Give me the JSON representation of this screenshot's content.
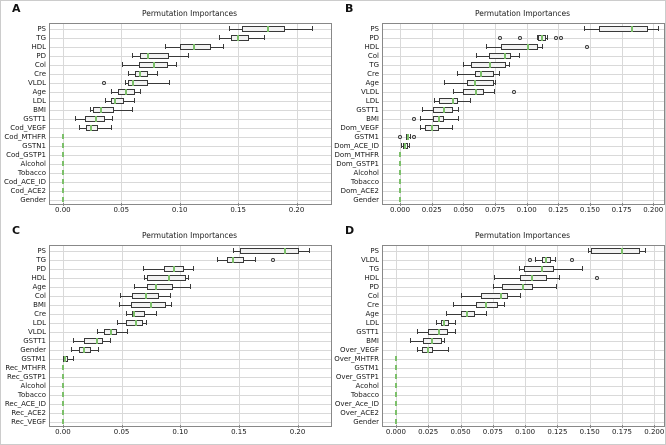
{
  "figure_title": "Permutation importance box plots",
  "colors": {
    "background": "#ffffff",
    "grid": "#d9d9d9",
    "spine": "#888888",
    "box_fill": "#f2f2f2",
    "box_edge": "#3a3a3a",
    "whisker": "#3a3a3a",
    "median_green": "#7cc06a",
    "outlier_edge": "#3a3a3a",
    "text": "#1a1a1a"
  },
  "chart_data": [
    {
      "panel_label": "A",
      "type": "boxplot-horizontal",
      "title": "Permutation Importances",
      "xlim": [
        -0.011,
        0.2295
      ],
      "x_tick_values": [
        0.0,
        0.05,
        0.1,
        0.15,
        0.2
      ],
      "x_ticks": [
        "0.00",
        "0.05",
        "0.10",
        "0.15",
        "0.20"
      ],
      "grid": true,
      "rows": [
        {
          "label": "PS",
          "lo": 0.142,
          "q1": 0.153,
          "med": 0.176,
          "q3": 0.19,
          "hi": 0.213,
          "outliers": []
        },
        {
          "label": "TG",
          "lo": 0.134,
          "q1": 0.144,
          "med": 0.15,
          "q3": 0.159,
          "hi": 0.172,
          "outliers": []
        },
        {
          "label": "HDL",
          "lo": 0.087,
          "q1": 0.1,
          "med": 0.112,
          "q3": 0.127,
          "hi": 0.137,
          "outliers": []
        },
        {
          "label": "PD",
          "lo": 0.059,
          "q1": 0.066,
          "med": 0.073,
          "q3": 0.091,
          "hi": 0.107,
          "outliers": []
        },
        {
          "label": "Col",
          "lo": 0.051,
          "q1": 0.065,
          "med": 0.078,
          "q3": 0.09,
          "hi": 0.097,
          "outliers": []
        },
        {
          "label": "Cre",
          "lo": 0.056,
          "q1": 0.062,
          "med": 0.066,
          "q3": 0.073,
          "hi": 0.081,
          "outliers": []
        },
        {
          "label": "VLDL",
          "lo": 0.053,
          "q1": 0.056,
          "med": 0.06,
          "q3": 0.073,
          "hi": 0.091,
          "outliers": [
            0.035
          ]
        },
        {
          "label": "Age",
          "lo": 0.041,
          "q1": 0.047,
          "med": 0.054,
          "q3": 0.062,
          "hi": 0.066,
          "outliers": []
        },
        {
          "label": "LDL",
          "lo": 0.036,
          "q1": 0.041,
          "med": 0.045,
          "q3": 0.052,
          "hi": 0.061,
          "outliers": []
        },
        {
          "label": "BMI",
          "lo": 0.023,
          "q1": 0.026,
          "med": 0.033,
          "q3": 0.044,
          "hi": 0.059,
          "outliers": []
        },
        {
          "label": "GSTT1",
          "lo": 0.01,
          "q1": 0.019,
          "med": 0.028,
          "q3": 0.036,
          "hi": 0.042,
          "outliers": []
        },
        {
          "label": "Cod_VEGF",
          "lo": 0.014,
          "q1": 0.02,
          "med": 0.024,
          "q3": 0.03,
          "hi": 0.041,
          "outliers": []
        },
        {
          "label": "Cod_MTHFR",
          "lo": 0,
          "q1": 0,
          "med": 0,
          "q3": 0,
          "hi": 0,
          "outliers": []
        },
        {
          "label": "GSTN1",
          "lo": 0,
          "q1": 0,
          "med": 0,
          "q3": 0,
          "hi": 0,
          "outliers": []
        },
        {
          "label": "Cod_GSTP1",
          "lo": 0,
          "q1": 0,
          "med": 0,
          "q3": 0,
          "hi": 0,
          "outliers": []
        },
        {
          "label": "Alcohol",
          "lo": 0,
          "q1": 0,
          "med": 0,
          "q3": 0,
          "hi": 0,
          "outliers": []
        },
        {
          "label": "Tobacco",
          "lo": 0,
          "q1": 0,
          "med": 0,
          "q3": 0,
          "hi": 0,
          "outliers": []
        },
        {
          "label": "Cod_ACE_ID",
          "lo": 0,
          "q1": 0,
          "med": 0,
          "q3": 0,
          "hi": 0,
          "outliers": []
        },
        {
          "label": "Cod_ACE2",
          "lo": 0,
          "q1": 0,
          "med": 0,
          "q3": 0,
          "hi": 0,
          "outliers": []
        },
        {
          "label": "Gender",
          "lo": 0,
          "q1": 0,
          "med": 0,
          "q3": 0,
          "hi": 0,
          "outliers": []
        }
      ]
    },
    {
      "panel_label": "B",
      "type": "boxplot-horizontal",
      "title": "Permutation Importances",
      "xlim": [
        -0.0135,
        0.2085
      ],
      "x_tick_values": [
        0.0,
        0.025,
        0.05,
        0.075,
        0.1,
        0.125,
        0.15,
        0.175,
        0.2
      ],
      "x_ticks": [
        "0.000",
        "0.025",
        "0.050",
        "0.075",
        "0.100",
        "0.125",
        "0.150",
        "0.175",
        "0.200"
      ],
      "grid": true,
      "rows": [
        {
          "label": "PS",
          "lo": 0.145,
          "q1": 0.157,
          "med": 0.183,
          "q3": 0.196,
          "hi": 0.204,
          "outliers": []
        },
        {
          "label": "PD",
          "lo": 0.108,
          "q1": 0.109,
          "med": 0.112,
          "q3": 0.115,
          "hi": 0.116,
          "outliers": [
            0.079,
            0.095,
            0.123,
            0.127
          ]
        },
        {
          "label": "HDL",
          "lo": 0.068,
          "q1": 0.08,
          "med": 0.101,
          "q3": 0.109,
          "hi": 0.112,
          "outliers": [
            0.148
          ]
        },
        {
          "label": "Col",
          "lo": 0.06,
          "q1": 0.07,
          "med": 0.083,
          "q3": 0.088,
          "hi": 0.094,
          "outliers": []
        },
        {
          "label": "TG",
          "lo": 0.05,
          "q1": 0.056,
          "med": 0.071,
          "q3": 0.084,
          "hi": 0.086,
          "outliers": []
        },
        {
          "label": "Cre",
          "lo": 0.045,
          "q1": 0.059,
          "med": 0.064,
          "q3": 0.074,
          "hi": 0.078,
          "outliers": []
        },
        {
          "label": "Age",
          "lo": 0.035,
          "q1": 0.053,
          "med": 0.059,
          "q3": 0.074,
          "hi": 0.075,
          "outliers": []
        },
        {
          "label": "VLDL",
          "lo": 0.042,
          "q1": 0.05,
          "med": 0.06,
          "q3": 0.066,
          "hi": 0.074,
          "outliers": [
            0.09
          ]
        },
        {
          "label": "LDL",
          "lo": 0.027,
          "q1": 0.031,
          "med": 0.042,
          "q3": 0.046,
          "hi": 0.055,
          "outliers": []
        },
        {
          "label": "GSTT1",
          "lo": 0.017,
          "q1": 0.026,
          "med": 0.035,
          "q3": 0.042,
          "hi": 0.046,
          "outliers": []
        },
        {
          "label": "BMI",
          "lo": 0.016,
          "q1": 0.026,
          "med": 0.031,
          "q3": 0.035,
          "hi": 0.046,
          "outliers": [
            0.011
          ]
        },
        {
          "label": "Dom_VEGF",
          "lo": 0.016,
          "q1": 0.02,
          "med": 0.025,
          "q3": 0.031,
          "hi": 0.041,
          "outliers": []
        },
        {
          "label": "GSTM1",
          "lo": 0.005,
          "q1": 0.005,
          "med": 0.006,
          "q3": 0.007,
          "hi": 0.008,
          "outliers": [
            0.0,
            0.011
          ]
        },
        {
          "label": "Dom_ACE_ID",
          "lo": 0.001,
          "q1": 0.002,
          "med": 0.004,
          "q3": 0.006,
          "hi": 0.007,
          "outliers": []
        },
        {
          "label": "Dom_MTHFR",
          "lo": 0,
          "q1": 0,
          "med": 0,
          "q3": 0,
          "hi": 0,
          "outliers": []
        },
        {
          "label": "Dom_GSTP1",
          "lo": 0,
          "q1": 0,
          "med": 0,
          "q3": 0,
          "hi": 0,
          "outliers": []
        },
        {
          "label": "Alcohol",
          "lo": 0,
          "q1": 0,
          "med": 0,
          "q3": 0,
          "hi": 0,
          "outliers": []
        },
        {
          "label": "Tobacco",
          "lo": 0,
          "q1": 0,
          "med": 0,
          "q3": 0,
          "hi": 0,
          "outliers": []
        },
        {
          "label": "Dom_ACE2",
          "lo": 0,
          "q1": 0,
          "med": 0,
          "q3": 0,
          "hi": 0,
          "outliers": []
        },
        {
          "label": "Gender",
          "lo": 0,
          "q1": 0,
          "med": 0,
          "q3": 0,
          "hi": 0,
          "outliers": []
        }
      ]
    },
    {
      "panel_label": "C",
      "type": "boxplot-horizontal",
      "title": "Permutation Importances",
      "xlim": [
        -0.011,
        0.2285
      ],
      "x_tick_values": [
        0.0,
        0.05,
        0.1,
        0.15,
        0.2
      ],
      "x_ticks": [
        "0.00",
        "0.05",
        "0.10",
        "0.15",
        "0.20"
      ],
      "grid": true,
      "rows": [
        {
          "label": "PS",
          "lo": 0.145,
          "q1": 0.151,
          "med": 0.189,
          "q3": 0.201,
          "hi": 0.21,
          "outliers": []
        },
        {
          "label": "TG",
          "lo": 0.131,
          "q1": 0.14,
          "med": 0.145,
          "q3": 0.154,
          "hi": 0.164,
          "outliers": [
            0.179
          ]
        },
        {
          "label": "PD",
          "lo": 0.068,
          "q1": 0.086,
          "med": 0.095,
          "q3": 0.103,
          "hi": 0.111,
          "outliers": []
        },
        {
          "label": "HDL",
          "lo": 0.069,
          "q1": 0.072,
          "med": 0.09,
          "q3": 0.105,
          "hi": 0.107,
          "outliers": []
        },
        {
          "label": "Age",
          "lo": 0.061,
          "q1": 0.072,
          "med": 0.079,
          "q3": 0.094,
          "hi": 0.108,
          "outliers": []
        },
        {
          "label": "Col",
          "lo": 0.049,
          "q1": 0.059,
          "med": 0.071,
          "q3": 0.082,
          "hi": 0.091,
          "outliers": []
        },
        {
          "label": "BMI",
          "lo": 0.048,
          "q1": 0.058,
          "med": 0.075,
          "q3": 0.088,
          "hi": 0.092,
          "outliers": []
        },
        {
          "label": "Cre",
          "lo": 0.054,
          "q1": 0.059,
          "med": 0.061,
          "q3": 0.07,
          "hi": 0.079,
          "outliers": []
        },
        {
          "label": "LDL",
          "lo": 0.046,
          "q1": 0.054,
          "med": 0.062,
          "q3": 0.068,
          "hi": 0.071,
          "outliers": []
        },
        {
          "label": "VLDL",
          "lo": 0.029,
          "q1": 0.035,
          "med": 0.041,
          "q3": 0.046,
          "hi": 0.055,
          "outliers": []
        },
        {
          "label": "GSTT1",
          "lo": 0.009,
          "q1": 0.018,
          "med": 0.029,
          "q3": 0.034,
          "hi": 0.04,
          "outliers": []
        },
        {
          "label": "Gender",
          "lo": 0.007,
          "q1": 0.014,
          "med": 0.018,
          "q3": 0.024,
          "hi": 0.03,
          "outliers": []
        },
        {
          "label": "GSTM1",
          "lo": 0.0,
          "q1": 0.0,
          "med": 0.002,
          "q3": 0.004,
          "hi": 0.009,
          "outliers": []
        },
        {
          "label": "Rec_MTHFR",
          "lo": 0,
          "q1": 0,
          "med": 0,
          "q3": 0,
          "hi": 0,
          "outliers": []
        },
        {
          "label": "Rec_GSTP1",
          "lo": 0,
          "q1": 0,
          "med": 0,
          "q3": 0,
          "hi": 0,
          "outliers": []
        },
        {
          "label": "Alcohol",
          "lo": 0,
          "q1": 0,
          "med": 0,
          "q3": 0,
          "hi": 0,
          "outliers": []
        },
        {
          "label": "Tobacco",
          "lo": 0,
          "q1": 0,
          "med": 0,
          "q3": 0,
          "hi": 0,
          "outliers": []
        },
        {
          "label": "Rec_ACE_ID",
          "lo": 0,
          "q1": 0,
          "med": 0,
          "q3": 0,
          "hi": 0,
          "outliers": []
        },
        {
          "label": "Rec_ACE2",
          "lo": 0,
          "q1": 0,
          "med": 0,
          "q3": 0,
          "hi": 0,
          "outliers": []
        },
        {
          "label": "Rec_VEGF",
          "lo": 0,
          "q1": 0,
          "med": 0,
          "q3": 0,
          "hi": 0,
          "outliers": []
        }
      ]
    },
    {
      "panel_label": "D",
      "type": "boxplot-horizontal",
      "title": "Permutation Importances",
      "xlim": [
        -0.01,
        0.2075
      ],
      "x_tick_values": [
        0.0,
        0.025,
        0.05,
        0.075,
        0.1,
        0.125,
        0.15,
        0.175,
        0.2
      ],
      "x_ticks": [
        "0.000",
        "0.025",
        "0.050",
        "0.075",
        "0.100",
        "0.125",
        "0.150",
        "0.175",
        "0.200"
      ],
      "grid": true,
      "rows": [
        {
          "label": "PS",
          "lo": 0.149,
          "q1": 0.151,
          "med": 0.175,
          "q3": 0.189,
          "hi": 0.193,
          "outliers": []
        },
        {
          "label": "VLDL",
          "lo": 0.108,
          "q1": 0.113,
          "med": 0.116,
          "q3": 0.12,
          "hi": 0.123,
          "outliers": [
            0.104,
            0.136
          ]
        },
        {
          "label": "TG",
          "lo": 0.095,
          "q1": 0.099,
          "med": 0.113,
          "q3": 0.122,
          "hi": 0.144,
          "outliers": []
        },
        {
          "label": "HDL",
          "lo": 0.076,
          "q1": 0.096,
          "med": 0.105,
          "q3": 0.117,
          "hi": 0.126,
          "outliers": [
            0.156
          ]
        },
        {
          "label": "PD",
          "lo": 0.075,
          "q1": 0.082,
          "med": 0.098,
          "q3": 0.106,
          "hi": 0.124,
          "outliers": []
        },
        {
          "label": "Col",
          "lo": 0.05,
          "q1": 0.066,
          "med": 0.081,
          "q3": 0.087,
          "hi": 0.096,
          "outliers": []
        },
        {
          "label": "Cre",
          "lo": 0.044,
          "q1": 0.062,
          "med": 0.07,
          "q3": 0.079,
          "hi": 0.084,
          "outliers": []
        },
        {
          "label": "Age",
          "lo": 0.039,
          "q1": 0.05,
          "med": 0.055,
          "q3": 0.061,
          "hi": 0.07,
          "outliers": []
        },
        {
          "label": "LDL",
          "lo": 0.031,
          "q1": 0.035,
          "med": 0.037,
          "q3": 0.041,
          "hi": 0.046,
          "outliers": []
        },
        {
          "label": "GSTT1",
          "lo": 0.016,
          "q1": 0.025,
          "med": 0.033,
          "q3": 0.04,
          "hi": 0.046,
          "outliers": []
        },
        {
          "label": "BMI",
          "lo": 0.011,
          "q1": 0.021,
          "med": 0.028,
          "q3": 0.036,
          "hi": 0.037,
          "outliers": []
        },
        {
          "label": "Over_VEGF",
          "lo": 0.016,
          "q1": 0.02,
          "med": 0.025,
          "q3": 0.029,
          "hi": 0.04,
          "outliers": []
        },
        {
          "label": "Over_MHTFR",
          "lo": 0,
          "q1": 0,
          "med": 0,
          "q3": 0,
          "hi": 0,
          "outliers": []
        },
        {
          "label": "GSTM1",
          "lo": 0,
          "q1": 0,
          "med": 0,
          "q3": 0,
          "hi": 0,
          "outliers": []
        },
        {
          "label": "Over_GSTP1",
          "lo": 0,
          "q1": 0,
          "med": 0,
          "q3": 0,
          "hi": 0,
          "outliers": []
        },
        {
          "label": "Acohol",
          "lo": 0,
          "q1": 0,
          "med": 0,
          "q3": 0,
          "hi": 0,
          "outliers": []
        },
        {
          "label": "Tobacco",
          "lo": 0,
          "q1": 0,
          "med": 0,
          "q3": 0,
          "hi": 0,
          "outliers": []
        },
        {
          "label": "Over_Ace_ID",
          "lo": 0,
          "q1": 0,
          "med": 0,
          "q3": 0,
          "hi": 0,
          "outliers": []
        },
        {
          "label": "Over_ACE2",
          "lo": 0,
          "q1": 0,
          "med": 0,
          "q3": 0,
          "hi": 0,
          "outliers": []
        },
        {
          "label": "Gender",
          "lo": 0,
          "q1": 0,
          "med": 0,
          "q3": 0,
          "hi": 0,
          "outliers": []
        }
      ]
    }
  ]
}
